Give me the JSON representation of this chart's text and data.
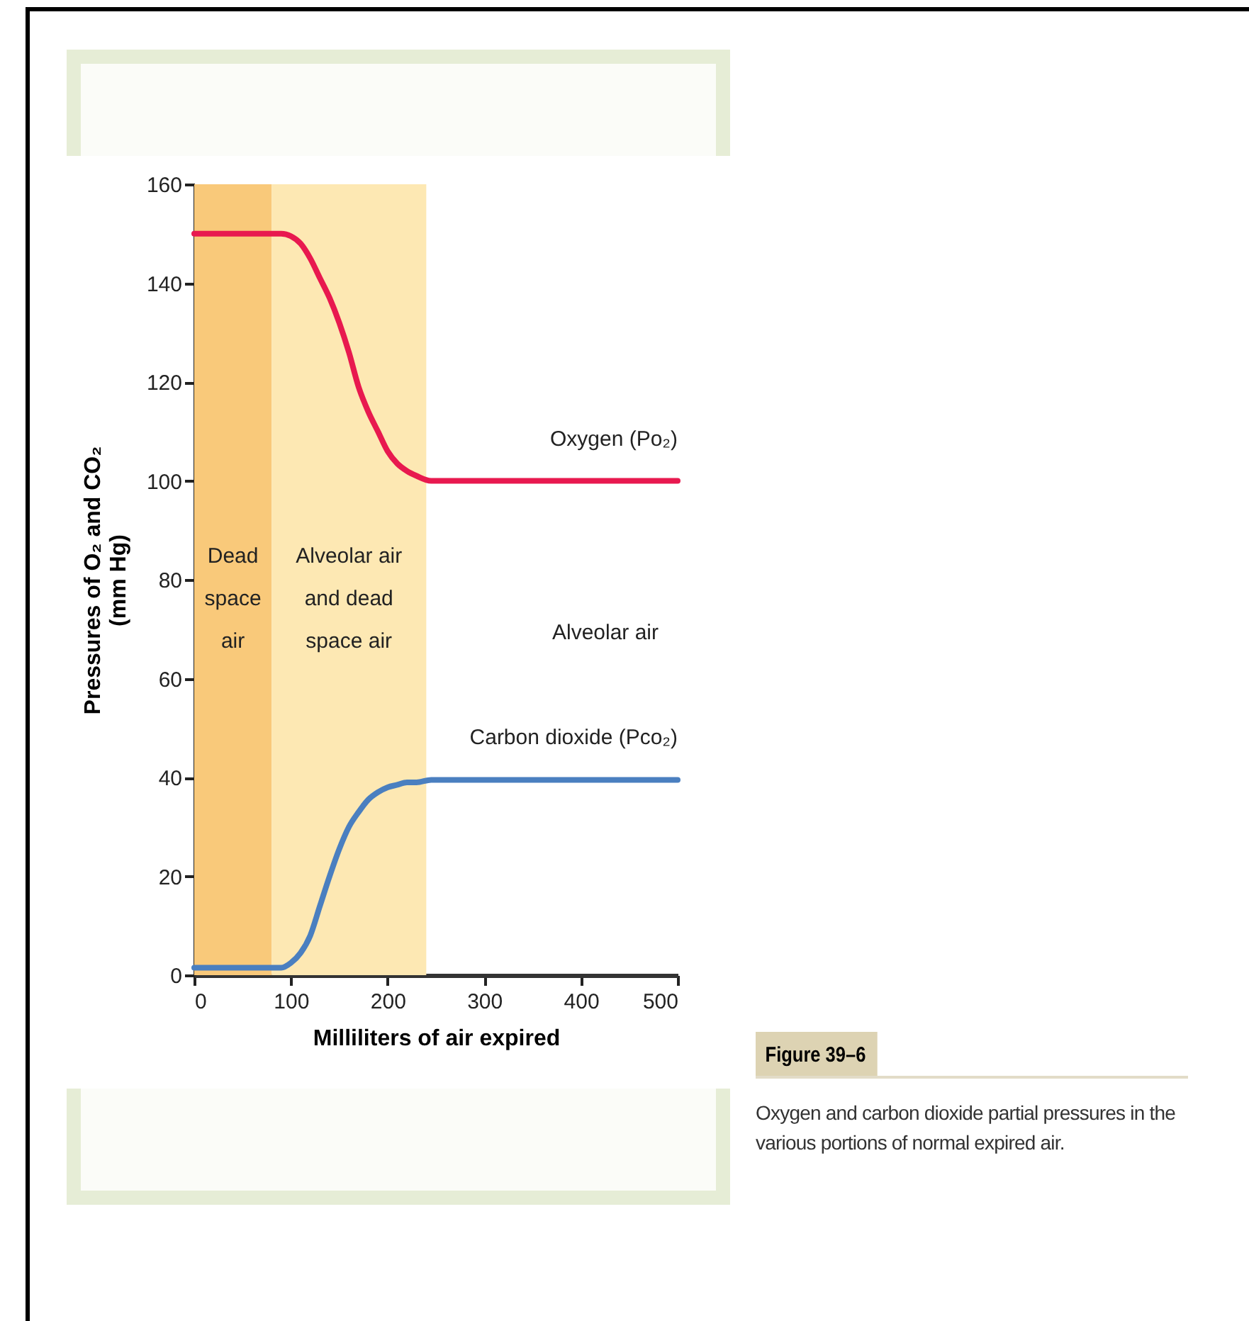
{
  "chart_data": {
    "type": "line",
    "title": "Figure 39–6",
    "subtitle": "Oxygen and carbon dioxide partial pressures in the various portions of normal expired air.",
    "xlabel": "Milliliters of air expired",
    "ylabel": "Pressures of O₂ and CO₂\n(mm Hg)",
    "xlim": [
      0,
      500
    ],
    "xticks": [
      0,
      100,
      200,
      300,
      400,
      500
    ],
    "ylim": [
      0,
      160
    ],
    "yticks": [
      0,
      20,
      40,
      60,
      80,
      100,
      120,
      140,
      160
    ],
    "grid": false,
    "line_style": "solid",
    "marker": "none",
    "x": [
      0,
      90,
      100,
      110,
      120,
      130,
      140,
      150,
      160,
      170,
      180,
      190,
      200,
      210,
      220,
      230,
      245,
      500
    ],
    "series": [
      {
        "name": "Oxygen (Po₂)",
        "color": "#e8194f",
        "values": [
          150,
          150,
          149.5,
          148,
          145,
          141,
          137,
          132,
          126,
          119,
          114,
          110,
          106,
          103.5,
          102,
          101,
          100,
          100
        ]
      },
      {
        "name": "Carbon dioxide (Pco₂)",
        "color": "#4a7fc0",
        "values": [
          1.5,
          1.5,
          2.5,
          4.5,
          8,
          14,
          20,
          25.5,
          30,
          33,
          35.5,
          37,
          38,
          38.5,
          39,
          39,
          39.5,
          39.5
        ]
      }
    ],
    "bands": [
      {
        "axis": "x",
        "from": 0,
        "to": 80,
        "label": "Dead\nspace\nair",
        "color": "#f9c97a"
      },
      {
        "axis": "x",
        "from": 80,
        "to": 240,
        "label": "Alveolar air\nand dead\nspace air",
        "color": "#fde8b3"
      }
    ],
    "annotations": [
      "Alveolar air"
    ]
  }
}
